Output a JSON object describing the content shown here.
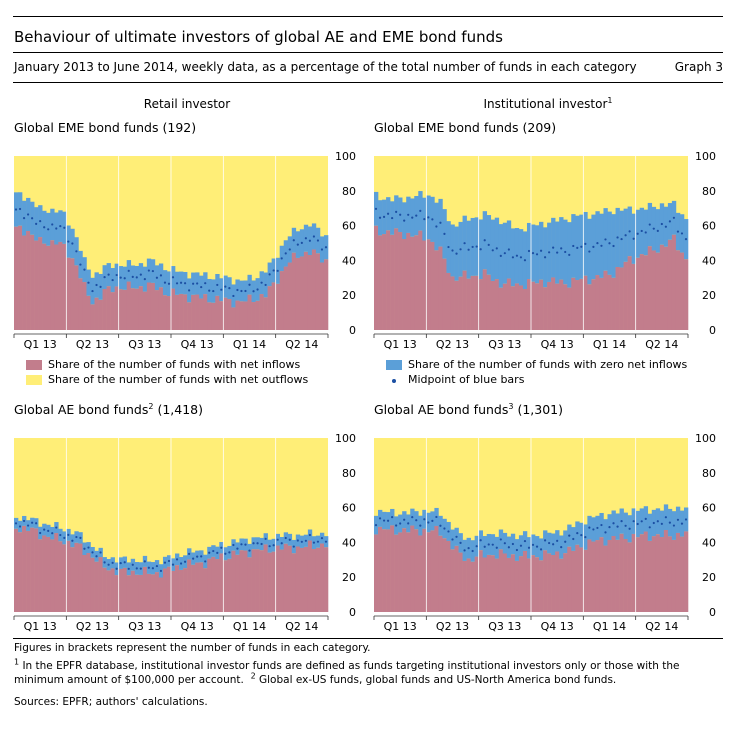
{
  "header": {
    "title": "Behaviour of ultimate investors of global AE and EME bond funds",
    "subtitle": "January 2013 to June 2014, weekly data, as a percentage of the total number of funds in each category",
    "graph_no": "Graph 3"
  },
  "columns": {
    "retail": "Retail investor",
    "institutional": "Institutional investor",
    "institutional_sup": "1"
  },
  "colors": {
    "inflow": "#c27d8c",
    "outflow": "#ffee77",
    "zero": "#5b9fd8",
    "midpoint": "#1c4fa3"
  },
  "legends": {
    "inflow": "Share of the number of funds with net inflows",
    "outflow": "Share of the number of funds with net outflows",
    "zero": "Share of the number of funds with zero net inflows",
    "midpoint": "Midpoint of blue bars"
  },
  "footnotes": {
    "note": "Figures in brackets represent the number of funds in each category.",
    "fn1_mark": "1",
    "fn1_text": "In the EPFR database, institutional investor funds are defined as funds targeting institutional investors only or those with the minimum amount of $100,000 per account.",
    "fn2_mark": "2",
    "fn2_text": "Global ex-US funds, global funds and US-North America bond funds.",
    "sources": "Sources: EPFR; authors' calculations."
  },
  "chart_data": [
    {
      "type": "area",
      "title": "Global EME bond funds",
      "title_sup": "",
      "title_suffix": "(192)",
      "categories": [
        "Q1 13",
        "Q2 13",
        "Q3 13",
        "Q4 13",
        "Q1 14",
        "Q2 14"
      ],
      "yticks": [
        0,
        20,
        40,
        60,
        80,
        100
      ],
      "ylim": [
        0,
        100
      ],
      "weeks": 78,
      "anchors": {
        "inflow": [
          [
            0,
            58
          ],
          [
            3,
            57
          ],
          [
            6,
            50
          ],
          [
            10,
            51
          ],
          [
            12,
            47
          ],
          [
            15,
            38
          ],
          [
            17,
            24
          ],
          [
            19,
            16
          ],
          [
            22,
            22
          ],
          [
            26,
            25
          ],
          [
            30,
            24
          ],
          [
            33,
            26
          ],
          [
            37,
            22
          ],
          [
            41,
            20
          ],
          [
            45,
            19
          ],
          [
            48,
            18
          ],
          [
            52,
            17
          ],
          [
            56,
            16
          ],
          [
            59,
            18
          ],
          [
            62,
            20
          ],
          [
            64,
            26
          ],
          [
            67,
            37
          ],
          [
            70,
            43
          ],
          [
            73,
            45
          ],
          [
            77,
            40
          ]
        ],
        "outflow": [
          [
            0,
            22
          ],
          [
            3,
            24
          ],
          [
            6,
            31
          ],
          [
            10,
            31
          ],
          [
            12,
            34
          ],
          [
            15,
            46
          ],
          [
            17,
            61
          ],
          [
            19,
            69
          ],
          [
            22,
            64
          ],
          [
            26,
            62
          ],
          [
            30,
            63
          ],
          [
            33,
            60
          ],
          [
            37,
            64
          ],
          [
            41,
            67
          ],
          [
            45,
            68
          ],
          [
            48,
            69
          ],
          [
            52,
            70
          ],
          [
            56,
            72
          ],
          [
            59,
            70
          ],
          [
            62,
            66
          ],
          [
            64,
            60
          ],
          [
            67,
            48
          ],
          [
            70,
            42
          ],
          [
            73,
            39
          ],
          [
            77,
            46
          ]
        ]
      }
    },
    {
      "type": "area",
      "title": "Global EME bond funds",
      "title_sup": "",
      "title_suffix": "(209)",
      "categories": [
        "Q1 13",
        "Q2 13",
        "Q3 13",
        "Q4 13",
        "Q1 14",
        "Q2 14"
      ],
      "yticks": [
        0,
        20,
        40,
        60,
        80,
        100
      ],
      "ylim": [
        0,
        100
      ],
      "weeks": 78,
      "anchors": {
        "inflow": [
          [
            0,
            57
          ],
          [
            4,
            56
          ],
          [
            8,
            55
          ],
          [
            13,
            53
          ],
          [
            16,
            45
          ],
          [
            19,
            30
          ],
          [
            23,
            31
          ],
          [
            27,
            32
          ],
          [
            31,
            27
          ],
          [
            35,
            26
          ],
          [
            39,
            27
          ],
          [
            43,
            28
          ],
          [
            47,
            27
          ],
          [
            51,
            29
          ],
          [
            55,
            30
          ],
          [
            59,
            33
          ],
          [
            63,
            40
          ],
          [
            67,
            44
          ],
          [
            71,
            48
          ],
          [
            74,
            52
          ],
          [
            77,
            41
          ]
        ],
        "outflow": [
          [
            0,
            23
          ],
          [
            4,
            25
          ],
          [
            8,
            24
          ],
          [
            13,
            22
          ],
          [
            16,
            27
          ],
          [
            19,
            40
          ],
          [
            23,
            36
          ],
          [
            27,
            34
          ],
          [
            31,
            37
          ],
          [
            35,
            42
          ],
          [
            39,
            40
          ],
          [
            43,
            38
          ],
          [
            47,
            36
          ],
          [
            51,
            34
          ],
          [
            55,
            33
          ],
          [
            59,
            31
          ],
          [
            63,
            31
          ],
          [
            67,
            30
          ],
          [
            71,
            28
          ],
          [
            74,
            28
          ],
          [
            77,
            36
          ]
        ]
      }
    },
    {
      "type": "area",
      "title": "Global AE bond funds",
      "title_sup": "2",
      "title_suffix": "(1,418)",
      "categories": [
        "Q1 13",
        "Q2 13",
        "Q3 13",
        "Q4 13",
        "Q1 14",
        "Q2 14"
      ],
      "yticks": [
        0,
        20,
        40,
        60,
        80,
        100
      ],
      "ylim": [
        0,
        100
      ],
      "weeks": 78,
      "anchors": {
        "inflow": [
          [
            0,
            49
          ],
          [
            4,
            47
          ],
          [
            8,
            43
          ],
          [
            12,
            41
          ],
          [
            16,
            37
          ],
          [
            19,
            32
          ],
          [
            22,
            26
          ],
          [
            26,
            23
          ],
          [
            30,
            23
          ],
          [
            34,
            22
          ],
          [
            38,
            24
          ],
          [
            42,
            27
          ],
          [
            46,
            28
          ],
          [
            50,
            31
          ],
          [
            54,
            33
          ],
          [
            58,
            35
          ],
          [
            62,
            36
          ],
          [
            66,
            37
          ],
          [
            70,
            37
          ],
          [
            74,
            38
          ],
          [
            77,
            39
          ]
        ],
        "outflow": [
          [
            0,
            45
          ],
          [
            4,
            47
          ],
          [
            8,
            50
          ],
          [
            12,
            52
          ],
          [
            16,
            56
          ],
          [
            19,
            62
          ],
          [
            22,
            68
          ],
          [
            26,
            70
          ],
          [
            30,
            70
          ],
          [
            34,
            71
          ],
          [
            38,
            69
          ],
          [
            42,
            66
          ],
          [
            46,
            65
          ],
          [
            50,
            62
          ],
          [
            54,
            60
          ],
          [
            58,
            58
          ],
          [
            62,
            57
          ],
          [
            66,
            56
          ],
          [
            70,
            56
          ],
          [
            74,
            55
          ],
          [
            77,
            55
          ]
        ]
      }
    },
    {
      "type": "area",
      "title": "Global AE bond funds",
      "title_sup": "3",
      "title_suffix": "(1,301)",
      "categories": [
        "Q1 13",
        "Q2 13",
        "Q3 13",
        "Q4 13",
        "Q1 14",
        "Q2 14"
      ],
      "yticks": [
        0,
        20,
        40,
        60,
        80,
        100
      ],
      "ylim": [
        0,
        100
      ],
      "weeks": 78,
      "anchors": {
        "inflow": [
          [
            0,
            48
          ],
          [
            4,
            47
          ],
          [
            8,
            47
          ],
          [
            12,
            47
          ],
          [
            16,
            46
          ],
          [
            20,
            35
          ],
          [
            23,
            30
          ],
          [
            27,
            33
          ],
          [
            31,
            33
          ],
          [
            35,
            32
          ],
          [
            39,
            32
          ],
          [
            43,
            33
          ],
          [
            47,
            34
          ],
          [
            51,
            38
          ],
          [
            55,
            41
          ],
          [
            59,
            42
          ],
          [
            63,
            43
          ],
          [
            67,
            44
          ],
          [
            71,
            44
          ],
          [
            74,
            44
          ],
          [
            77,
            45
          ]
        ],
        "outflow": [
          [
            0,
            42
          ],
          [
            4,
            43
          ],
          [
            8,
            43
          ],
          [
            12,
            42
          ],
          [
            16,
            43
          ],
          [
            20,
            54
          ],
          [
            23,
            58
          ],
          [
            27,
            55
          ],
          [
            31,
            55
          ],
          [
            35,
            56
          ],
          [
            39,
            56
          ],
          [
            43,
            55
          ],
          [
            47,
            53
          ],
          [
            51,
            48
          ],
          [
            55,
            45
          ],
          [
            59,
            43
          ],
          [
            63,
            42
          ],
          [
            67,
            41
          ],
          [
            71,
            41
          ],
          [
            74,
            40
          ],
          [
            77,
            41
          ]
        ]
      }
    }
  ]
}
